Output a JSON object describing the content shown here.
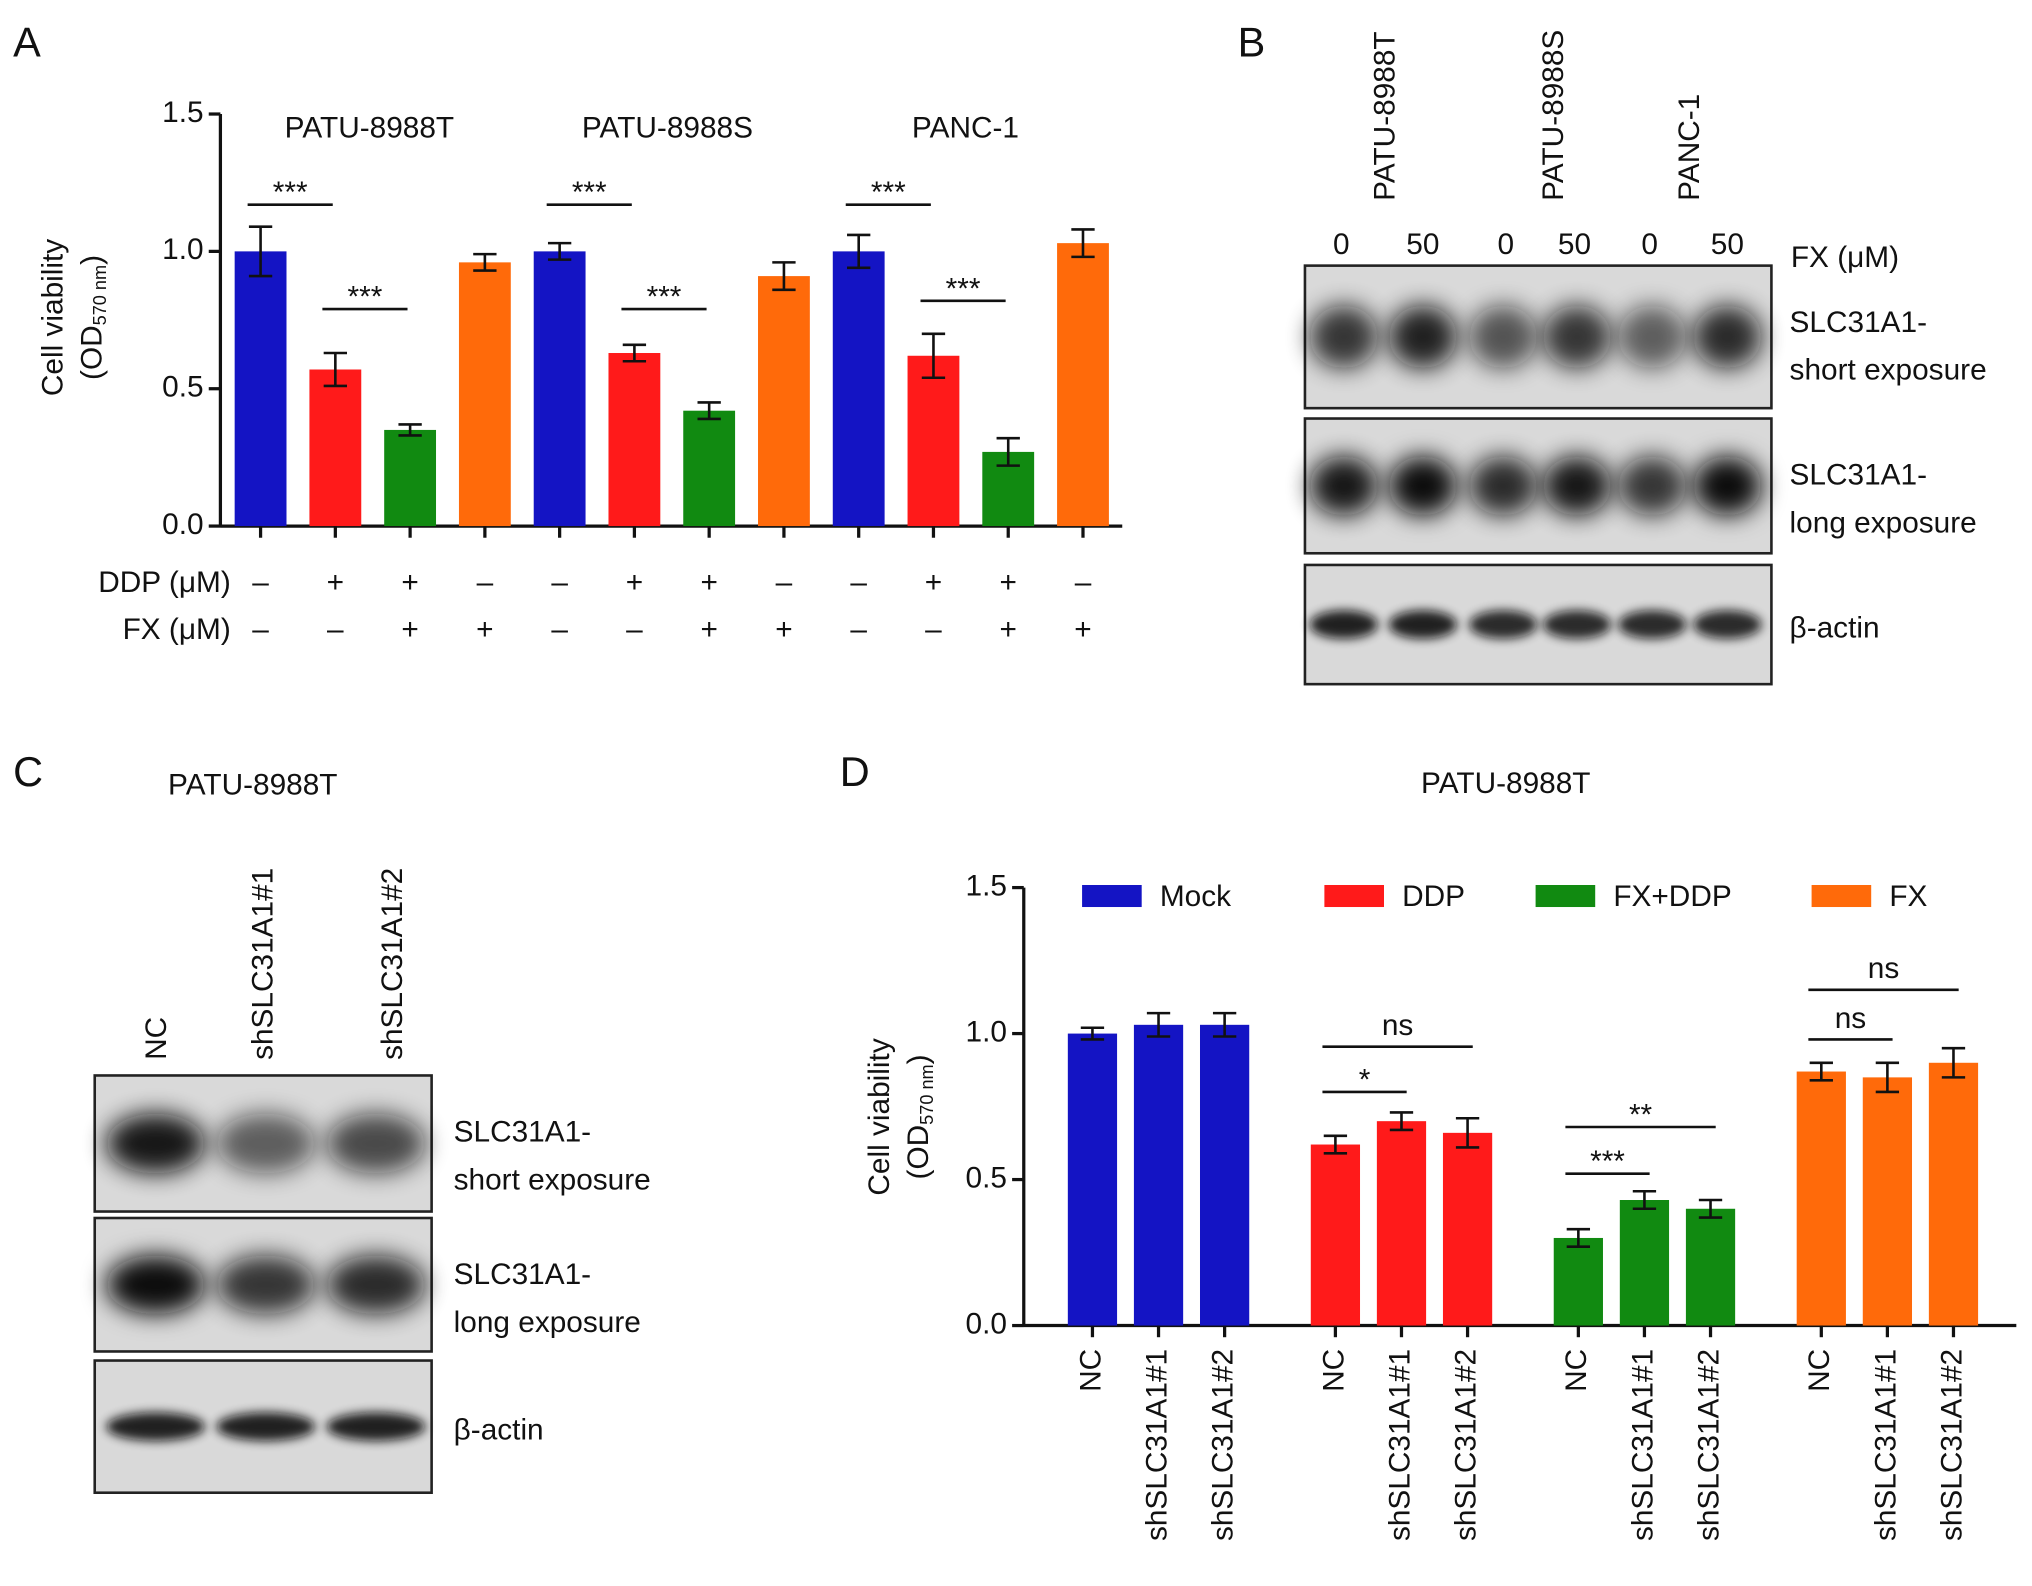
{
  "panels": [
    "A",
    "B",
    "C",
    "D"
  ],
  "chart_data": [
    {
      "type": "bar",
      "ylabel": "Cell viability",
      "ylabel_unit": [
        "(OD",
        "570 nm",
        ")"
      ],
      "ylim": [
        0,
        1.5
      ],
      "yticks": [
        {
          "value": 0,
          "label": "0.0"
        },
        0.5,
        {
          "value": 1,
          "label": "1.0"
        },
        1.5
      ],
      "groups": [
        "PATU-8988T",
        "PATU-8988S",
        "PANC-1"
      ],
      "values": [
        1.0,
        0.57,
        0.35,
        0.96,
        1.0,
        0.63,
        0.42,
        0.91,
        1.0,
        0.62,
        0.27,
        1.03
      ],
      "errors": [
        0.09,
        0.06,
        0.02,
        0.03,
        0.03,
        0.03,
        0.03,
        0.05,
        0.06,
        0.08,
        0.05,
        0.05
      ],
      "colors": [
        "#1414c4",
        "#ff1a1a",
        "#118a11",
        "#ff6a0a",
        "#1414c4",
        "#ff1a1a",
        "#118a11",
        "#ff6a0a",
        "#1414c4",
        "#ff1a1a",
        "#118a11",
        "#ff6a0a"
      ],
      "treatments": [
        {
          "name": "DDP (μM)",
          "signs": [
            "–",
            "+",
            "+",
            "–",
            "–",
            "+",
            "+",
            "–",
            "–",
            "+",
            "+",
            "–"
          ]
        },
        {
          "name": "FX (μM)",
          "signs": [
            "–",
            "–",
            "+",
            "+",
            "–",
            "–",
            "+",
            "+",
            "–",
            "–",
            "+",
            "+"
          ]
        }
      ],
      "annotations": [
        {
          "label": "***",
          "bars": [
            0,
            1
          ],
          "y": 1.17
        },
        {
          "label": "***",
          "bars": [
            1,
            2
          ],
          "y": 0.79
        },
        {
          "label": "***",
          "bars": [
            4,
            5
          ],
          "y": 1.17
        },
        {
          "label": "***",
          "bars": [
            5,
            6
          ],
          "y": 0.79
        },
        {
          "label": "***",
          "bars": [
            8,
            9
          ],
          "y": 1.17
        },
        {
          "label": "***",
          "bars": [
            9,
            10
          ],
          "y": 0.82
        }
      ]
    },
    {
      "type": "grouped_bar",
      "title": "PATU-8988T",
      "ylabel": "Cell viability",
      "ylabel_unit": [
        "(OD",
        "570 nm",
        ")"
      ],
      "ylim": [
        0,
        1.5
      ],
      "yticks": [
        {
          "value": 0,
          "label": "0.0"
        },
        0.5,
        {
          "value": 1,
          "label": "1.0"
        },
        1.5
      ],
      "categories": [
        "NC",
        "shSLC31A1#1",
        "shSLC31A1#2"
      ],
      "series": [
        {
          "name": "Mock",
          "color": "#1414c4",
          "values": [
            1.0,
            1.03,
            1.03
          ],
          "errors": [
            0.02,
            0.04,
            0.04
          ],
          "annotations": []
        },
        {
          "name": "DDP",
          "color": "#ff1a1a",
          "values": [
            0.62,
            0.7,
            0.66
          ],
          "errors": [
            0.03,
            0.03,
            0.05
          ],
          "annotations": [
            {
              "label": "*",
              "bars": [
                0,
                1
              ],
              "y": 0.8
            },
            {
              "label": "ns",
              "bars": [
                0,
                2
              ],
              "y": 0.955
            }
          ]
        },
        {
          "name": "FX+DDP",
          "color": "#118a11",
          "values": [
            0.3,
            0.43,
            0.4
          ],
          "errors": [
            0.03,
            0.03,
            0.03
          ],
          "annotations": [
            {
              "label": "***",
              "bars": [
                0,
                1
              ],
              "y": 0.52
            },
            {
              "label": "**",
              "bars": [
                0,
                2
              ],
              "y": 0.68
            }
          ]
        },
        {
          "name": "FX",
          "color": "#ff6a0a",
          "values": [
            0.87,
            0.85,
            0.9
          ],
          "errors": [
            0.03,
            0.05,
            0.05
          ],
          "annotations": [
            {
              "label": "ns",
              "bars": [
                0,
                1
              ],
              "y": 0.98
            },
            {
              "label": "ns",
              "bars": [
                0,
                2
              ],
              "y": 1.15
            }
          ]
        }
      ]
    }
  ],
  "blot_b": {
    "lanes_group": [
      "PATU-8988T",
      "PATU-8988S",
      "PANC-1"
    ],
    "doses": [
      "0",
      "50",
      "0",
      "50",
      "0",
      "50"
    ],
    "dose_label": "FX (μM)",
    "bands": [
      [
        "SLC31A1-",
        "short exposure"
      ],
      [
        "SLC31A1-",
        "long exposure"
      ],
      [
        "β-actin"
      ]
    ]
  },
  "blot_c": {
    "title": "PATU-8988T",
    "lanes": [
      "NC",
      "shSLC31A1#1",
      "shSLC31A1#2"
    ],
    "bands": [
      [
        "SLC31A1-",
        "short exposure"
      ],
      [
        "SLC31A1-",
        "long exposure"
      ],
      [
        "β-actin"
      ]
    ]
  }
}
